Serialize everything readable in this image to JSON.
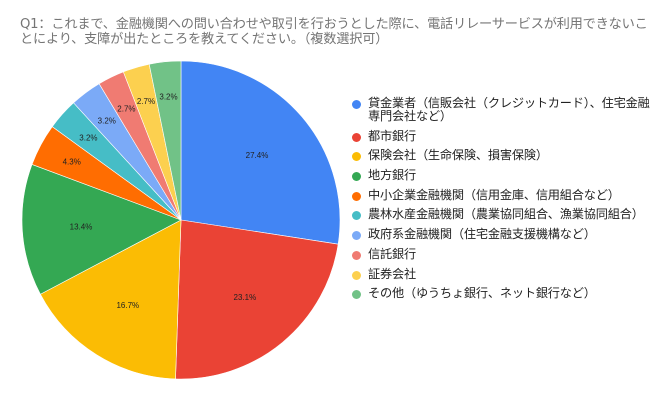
{
  "title": "Q1：これまで、金融機関への問い合わせや取引を行おうとした際に、電話リレーサービスが利用できないことにより、支障が出たところを教えてください。（複数選択可）",
  "chart_data": {
    "type": "pie",
    "title": "Q1：これまで、金融機関への問い合わせや取引を行おうとした際に、電話リレーサービスが利用できないことにより、支障が出たところを教えてください。（複数選択可）",
    "unit": "%",
    "start_angle": "12 o'clock, clockwise",
    "legend_position": "right",
    "categories": [
      "貸金業者（信販会社（クレジットカード）、住宅金融専門会社など）",
      "都市銀行",
      "保険会社（生命保険、損害保険）",
      "地方銀行",
      "中小企業金融機関（信用金庫、信用組合など）",
      "農林水産金融機関（農業協同組合、漁業協同組合）",
      "政府系金融機関（住宅金融支援機構など）",
      "信託銀行",
      "証券会社",
      "その他（ゆうちょ銀行、ネット銀行など）"
    ],
    "values": [
      27.4,
      23.1,
      16.7,
      13.4,
      4.3,
      3.2,
      3.2,
      2.7,
      2.7,
      3.2
    ],
    "labels": [
      "27.4%",
      "23.1%",
      "16.7%",
      "13.4%",
      "4.3%",
      "3.2%",
      "3.2%",
      "2.7%",
      "2.7%",
      "3.2%"
    ],
    "colors": [
      "#4285f4",
      "#ea4335",
      "#fbbc04",
      "#34a853",
      "#ff6d01",
      "#46bdc6",
      "#7baaf7",
      "#f07b72",
      "#fcd04f",
      "#71c287"
    ]
  },
  "legend": {
    "items": [
      {
        "label": "貸金業者（信販会社（クレジットカード）、住宅金融専門会社など）",
        "color": "#4285f4"
      },
      {
        "label": "都市銀行",
        "color": "#ea4335"
      },
      {
        "label": "保険会社（生命保険、損害保険）",
        "color": "#fbbc04"
      },
      {
        "label": "地方銀行",
        "color": "#34a853"
      },
      {
        "label": "中小企業金融機関（信用金庫、信用組合など）",
        "color": "#ff6d01"
      },
      {
        "label": "農林水産金融機関（農業協同組合、漁業協同組合）",
        "color": "#46bdc6"
      },
      {
        "label": "政府系金融機関（住宅金融支援機構など）",
        "color": "#7baaf7"
      },
      {
        "label": "信託銀行",
        "color": "#f07b72"
      },
      {
        "label": "証券会社",
        "color": "#fcd04f"
      },
      {
        "label": "その他（ゆうちょ銀行、ネット銀行など）",
        "color": "#71c287"
      }
    ]
  }
}
